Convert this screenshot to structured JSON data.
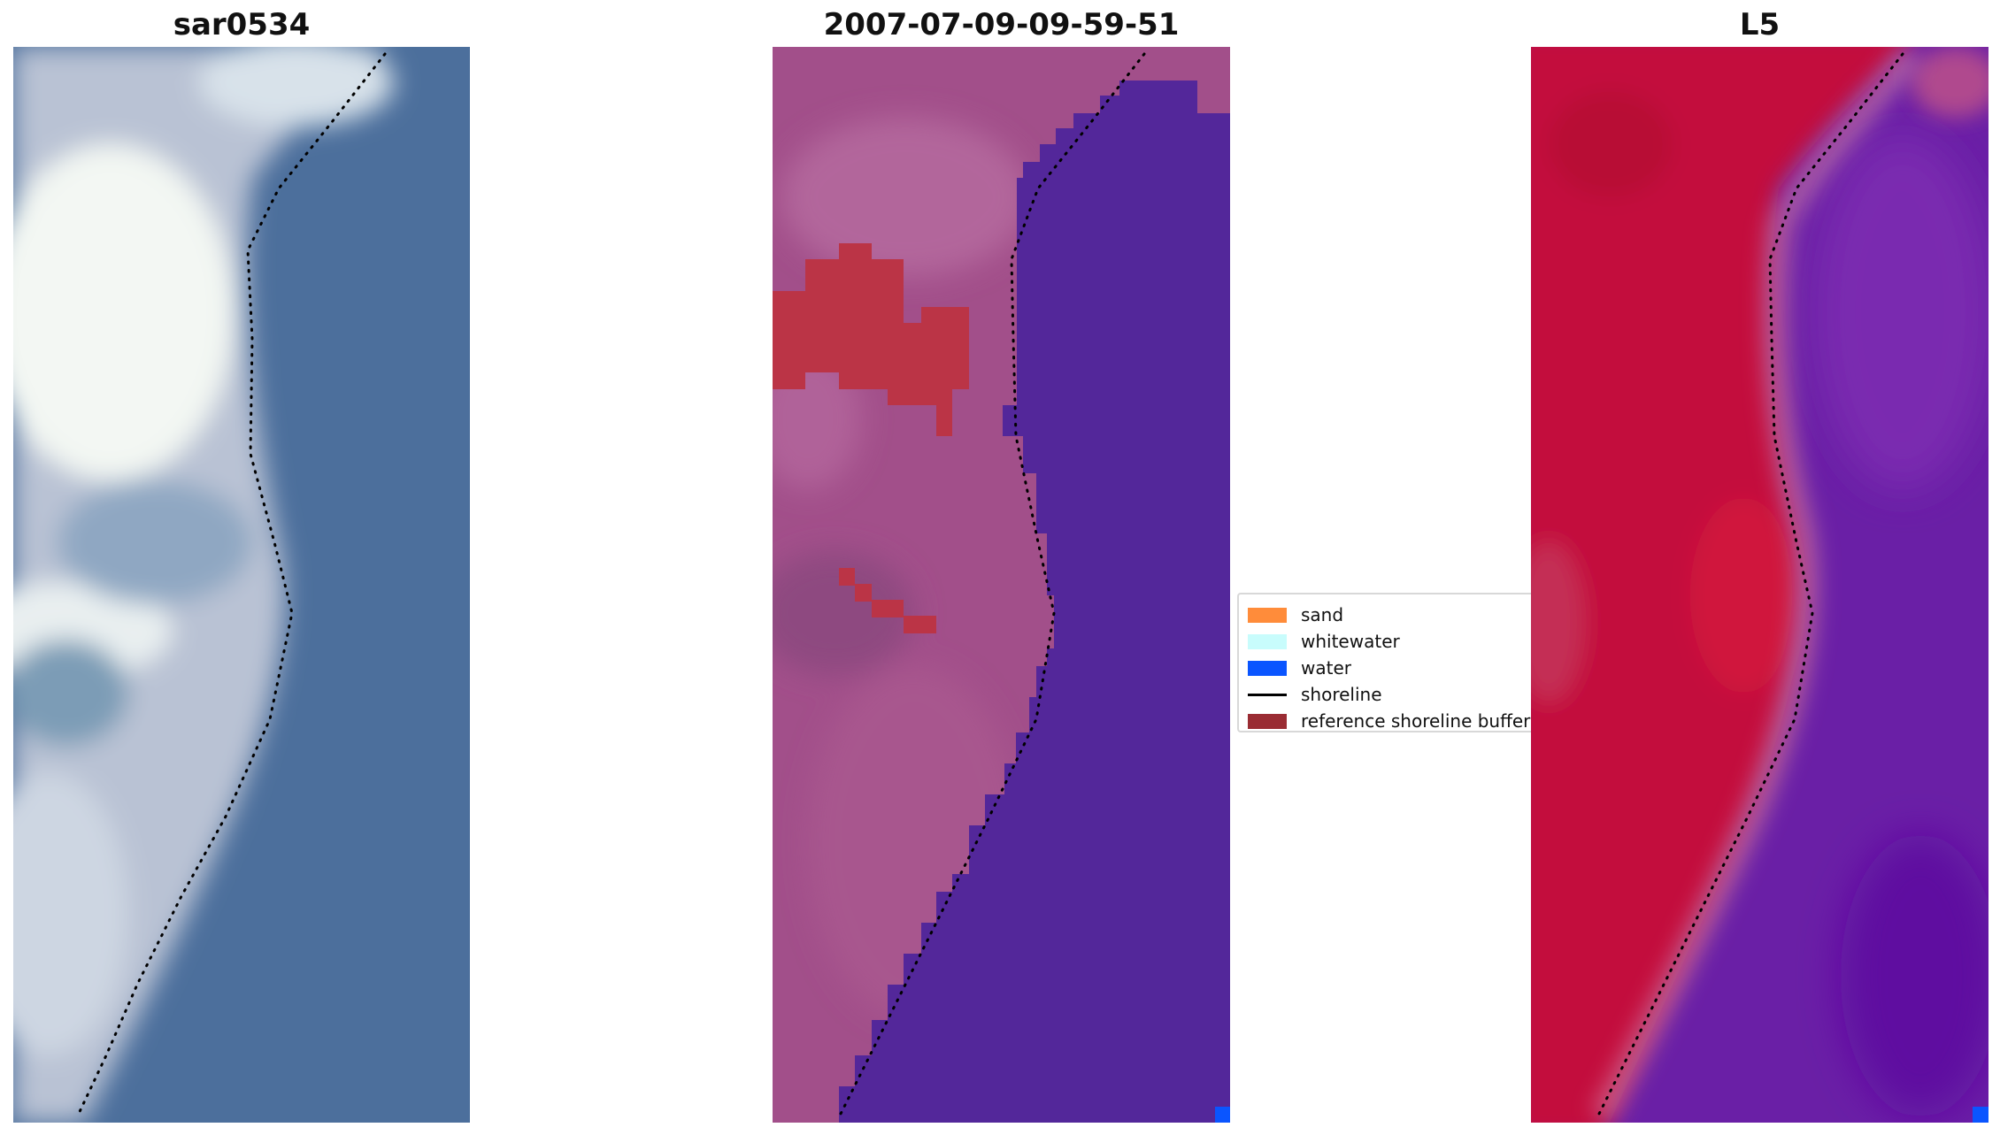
{
  "panels": [
    {
      "title": "sar0534"
    },
    {
      "title": "2007-07-09-09-59-51"
    },
    {
      "title": "L5"
    }
  ],
  "legend": {
    "items": [
      {
        "label": "sand",
        "kind": "patch",
        "color": "#ff8c3a"
      },
      {
        "label": "whitewater",
        "kind": "patch",
        "color": "#c8fcfc"
      },
      {
        "label": "water",
        "kind": "patch",
        "color": "#0a55ff"
      },
      {
        "label": "shoreline",
        "kind": "line",
        "color": "#000000"
      },
      {
        "label": "reference shoreline buffer",
        "kind": "patch",
        "color": "#9a2c33"
      }
    ]
  },
  "colors": {
    "rgb_water": "#4a6e9d",
    "rgb_land": "#b6bfd3",
    "rgb_cloud": "#f2f6f4",
    "classified_water": "#53279a",
    "classified_land": "#a24f8a",
    "classified_buffer": "#bb3446",
    "mndwi_land": "#c3113c",
    "mndwi_water": "#6a1fa6",
    "water_pixel": "#0a55ff",
    "shoreline_dots": "#000000"
  }
}
